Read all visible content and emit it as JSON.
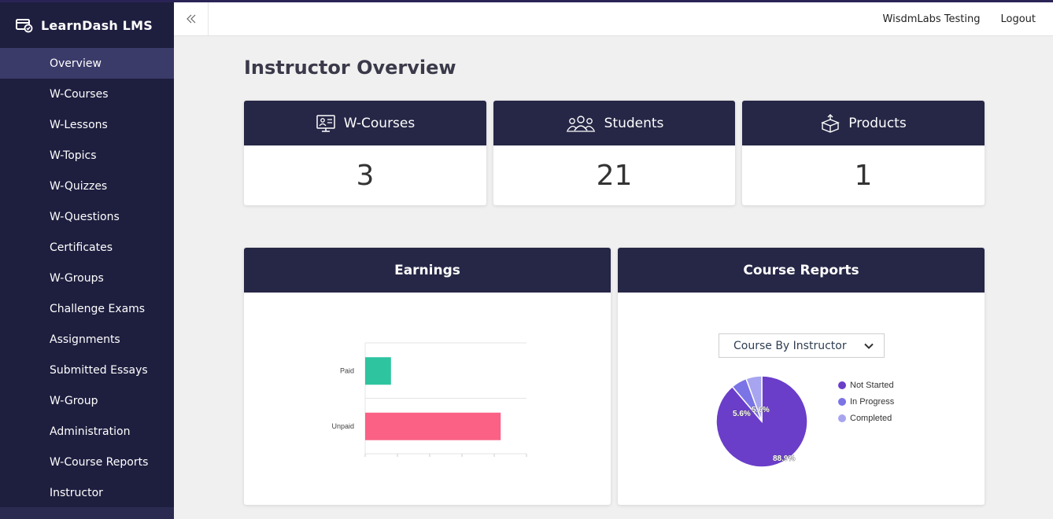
{
  "app": {
    "brand": "LearnDash LMS",
    "brand_icon": "certificate-icon"
  },
  "sidebar": {
    "items": [
      {
        "label": "Overview",
        "active": true
      },
      {
        "label": "W-Courses"
      },
      {
        "label": "W-Lessons"
      },
      {
        "label": "W-Topics"
      },
      {
        "label": "W-Quizzes"
      },
      {
        "label": "W-Questions"
      },
      {
        "label": "Certificates"
      },
      {
        "label": "W-Groups"
      },
      {
        "label": "Challenge Exams"
      },
      {
        "label": "Assignments"
      },
      {
        "label": "Submitted Essays"
      },
      {
        "label": "W-Group"
      },
      {
        "label": "Administration"
      },
      {
        "label": "W-Course Reports"
      },
      {
        "label": "Instructor"
      }
    ]
  },
  "topbar": {
    "collapse_icon": "double-chevron-left-icon",
    "user": "WisdmLabs Testing",
    "logout": "Logout"
  },
  "main": {
    "title": "Instructor Overview",
    "stats": [
      {
        "label": "W-Courses",
        "value": "3",
        "icon": "course-icon"
      },
      {
        "label": "Students",
        "value": "21",
        "icon": "students-icon"
      },
      {
        "label": "Products",
        "value": "1",
        "icon": "product-box-icon"
      }
    ],
    "earnings": {
      "title": "Earnings"
    },
    "reports": {
      "title": "Course Reports",
      "select_value": "Course By Instructor"
    }
  },
  "colors": {
    "sidebar": "#1e1e3f",
    "header": "#262746",
    "paid": "#2ec4a0",
    "unpaid": "#fb6185",
    "not_started": "#6a3ec9",
    "in_progress": "#7b74e6",
    "completed": "#a7a4f0"
  },
  "chart_data": [
    {
      "type": "bar",
      "orientation": "horizontal",
      "categories": [
        "Paid",
        "Unpaid"
      ],
      "values": [
        0.8,
        4.2
      ],
      "xlim": [
        0,
        5
      ],
      "grid": true
    },
    {
      "type": "pie",
      "labels": [
        "Not Started",
        "In Progress",
        "Completed"
      ],
      "values": [
        88.9,
        5.6,
        5.6
      ],
      "data_labels": [
        "88.9%",
        "5.6%",
        "5.6%"
      ],
      "legend": "right"
    }
  ]
}
